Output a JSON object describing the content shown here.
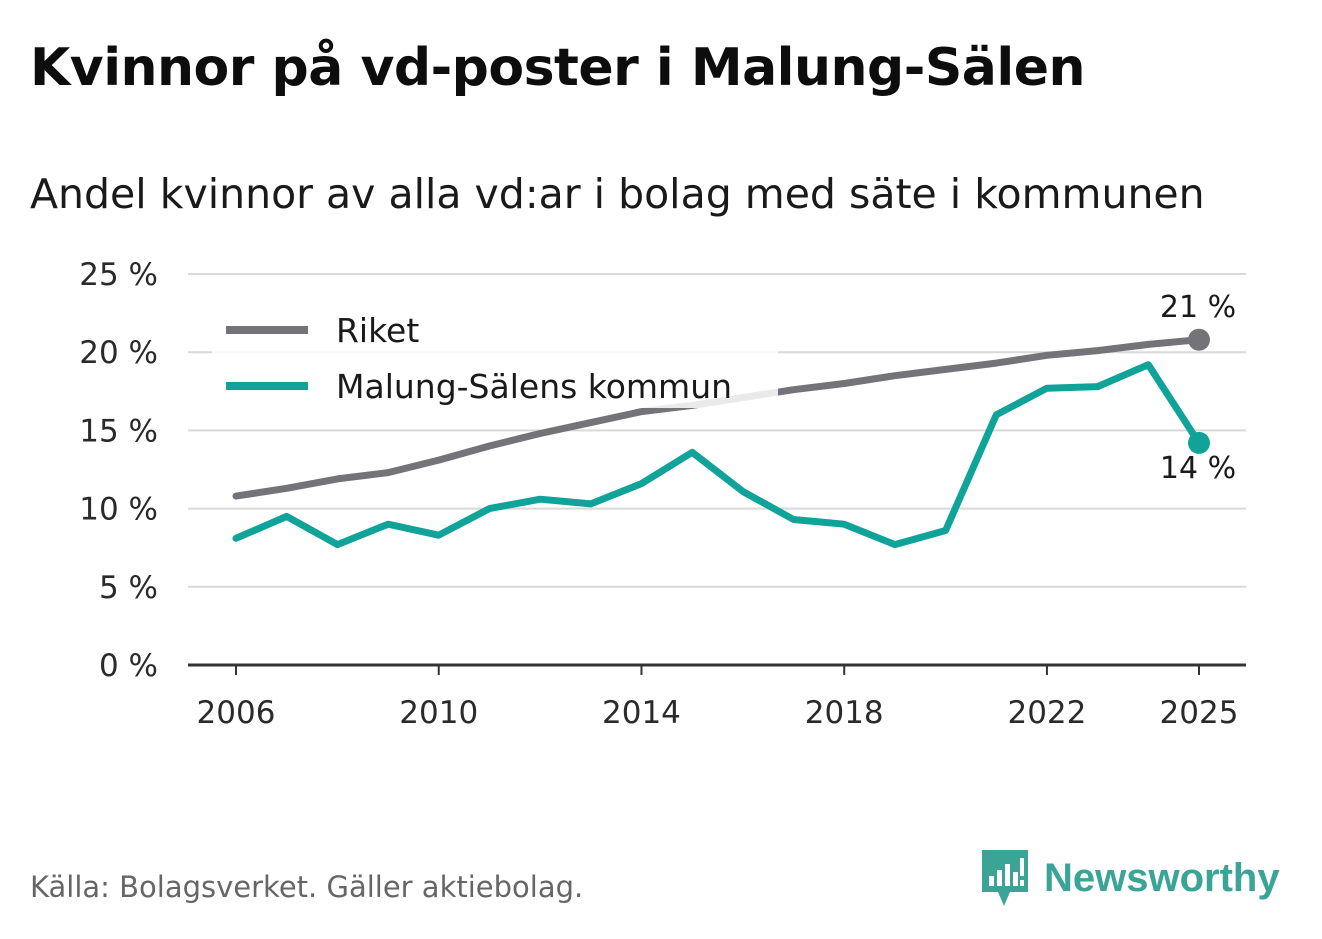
{
  "title": "Kvinnor på vd-poster i Malung-Sälen",
  "subtitle": "Andel kvinnor av alla vd:ar i bolag med säte i kommunen",
  "source": "Källa: Bolagsverket. Gäller aktiebolag.",
  "brand": "Newsworthy",
  "colors": {
    "riket": "#74737a",
    "kommun": "#10a39a",
    "grid": "#d9d9d9",
    "axis": "#333333",
    "brand": "#3aa597"
  },
  "chart_data": {
    "type": "line",
    "title": "Kvinnor på vd-poster i Malung-Sälen",
    "xlabel": "",
    "ylabel": "",
    "ylim": [
      0,
      25
    ],
    "xlim": [
      2006,
      2025
    ],
    "y_ticks": [
      0,
      5,
      10,
      15,
      20,
      25
    ],
    "y_tick_labels": [
      "0 %",
      "5 %",
      "10 %",
      "15 %",
      "20 %",
      "25 %"
    ],
    "x_ticks": [
      2006,
      2010,
      2014,
      2018,
      2022,
      2025
    ],
    "x_tick_labels": [
      "2006",
      "2010",
      "2014",
      "2018",
      "2022",
      "2025"
    ],
    "legend_position": "top-left",
    "x": [
      2006,
      2007,
      2008,
      2009,
      2010,
      2011,
      2012,
      2013,
      2014,
      2015,
      2016,
      2017,
      2018,
      2019,
      2020,
      2021,
      2022,
      2023,
      2024,
      2025
    ],
    "series": [
      {
        "name": "Riket",
        "color_key": "riket",
        "values": [
          10.8,
          11.3,
          11.9,
          12.3,
          13.1,
          14.0,
          14.8,
          15.5,
          16.2,
          16.6,
          17.1,
          17.6,
          18.0,
          18.5,
          18.9,
          19.3,
          19.8,
          20.1,
          20.5,
          20.8
        ],
        "end_label": "21 %"
      },
      {
        "name": "Malung-Sälens kommun",
        "color_key": "kommun",
        "values": [
          8.1,
          9.5,
          7.7,
          9.0,
          8.3,
          10.0,
          10.6,
          10.3,
          11.6,
          13.6,
          11.1,
          9.3,
          9.0,
          7.7,
          8.6,
          16.0,
          17.7,
          17.8,
          19.2,
          14.2
        ],
        "end_label": "14 %"
      }
    ]
  }
}
